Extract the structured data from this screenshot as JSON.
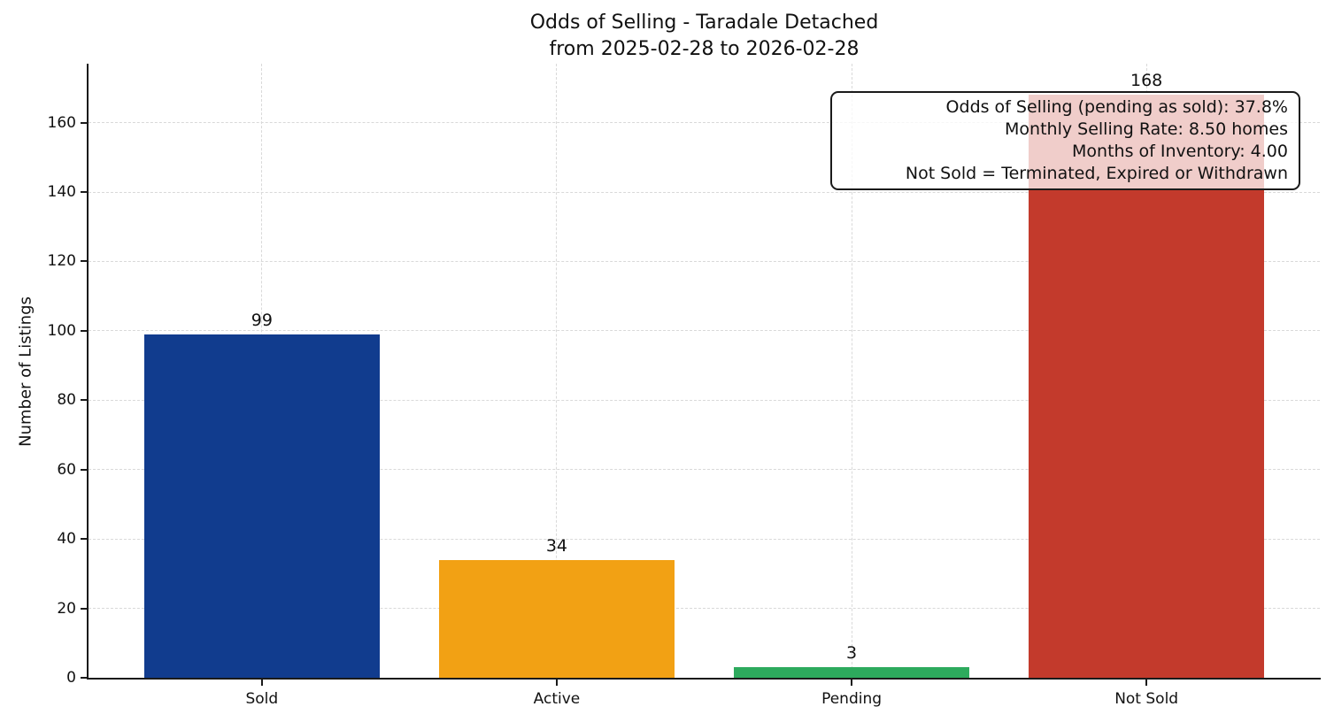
{
  "chart_data": {
    "type": "bar",
    "title_line1": "Odds of Selling - Taradale Detached",
    "title_line2": "from 2025-02-28 to 2026-02-28",
    "title": "Odds of Selling - Taradale Detached\nfrom 2025-02-28 to 2026-02-28",
    "xlabel": "",
    "ylabel": "Number of Listings",
    "categories": [
      "Sold",
      "Active",
      "Pending",
      "Not Sold"
    ],
    "values": [
      99,
      34,
      3,
      168
    ],
    "bar_colors": [
      "#113c8e",
      "#f2a114",
      "#2daa5d",
      "#c33a2c"
    ],
    "yticks": [
      0,
      20,
      40,
      60,
      80,
      100,
      120,
      140,
      160
    ],
    "ylim": [
      0,
      177
    ],
    "grid": "dashed light-gray gridlines on both axes",
    "legend": "none",
    "annotation": {
      "position": "top-right",
      "lines": [
        "Odds of Selling (pending as sold): 37.8%",
        "Monthly Selling Rate: 8.50 homes",
        "Months of Inventory: 4.00",
        "Not Sold = Terminated, Expired or Withdrawn"
      ]
    }
  }
}
